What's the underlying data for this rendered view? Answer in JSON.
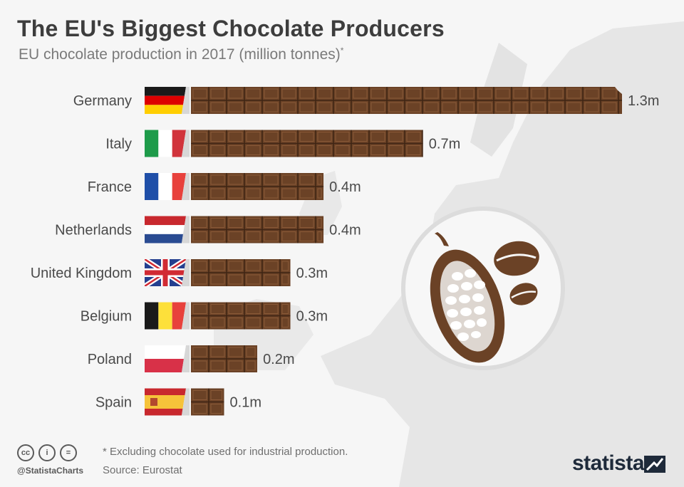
{
  "header": {
    "title": "The EU's Biggest Chocolate Producers",
    "subtitle": "EU chocolate production in 2017 (million tonnes)",
    "subtitle_marker": "*"
  },
  "chart_data": {
    "type": "bar",
    "orientation": "horizontal",
    "title": "The EU's Biggest Chocolate Producers",
    "subtitle": "EU chocolate production in 2017 (million tonnes)*",
    "categories": [
      "Germany",
      "Italy",
      "France",
      "Netherlands",
      "United Kingdom",
      "Belgium",
      "Poland",
      "Spain"
    ],
    "values": [
      1.3,
      0.7,
      0.4,
      0.4,
      0.3,
      0.3,
      0.2,
      0.1
    ],
    "value_labels": [
      "1.3m",
      "0.7m",
      "0.4m",
      "0.4m",
      "0.3m",
      "0.3m",
      "0.2m",
      "0.1m"
    ],
    "unit": "million tonnes",
    "bar_color": "#6b4226",
    "grid": false,
    "legend": "none"
  },
  "flags": [
    "germany-flag-icon",
    "italy-flag-icon",
    "france-flag-icon",
    "netherlands-flag-icon",
    "uk-flag-icon",
    "belgium-flag-icon",
    "poland-flag-icon",
    "spain-flag-icon"
  ],
  "decor": {
    "illustration": "cacao-pod-and-beans-icon",
    "background": "europe-map"
  },
  "footer": {
    "note": "* Excluding chocolate used for industrial production.",
    "source": "Source: Eurostat",
    "handle": "@StatistaCharts",
    "brand": "statista",
    "license_icons": [
      "cc",
      "i",
      "="
    ]
  }
}
